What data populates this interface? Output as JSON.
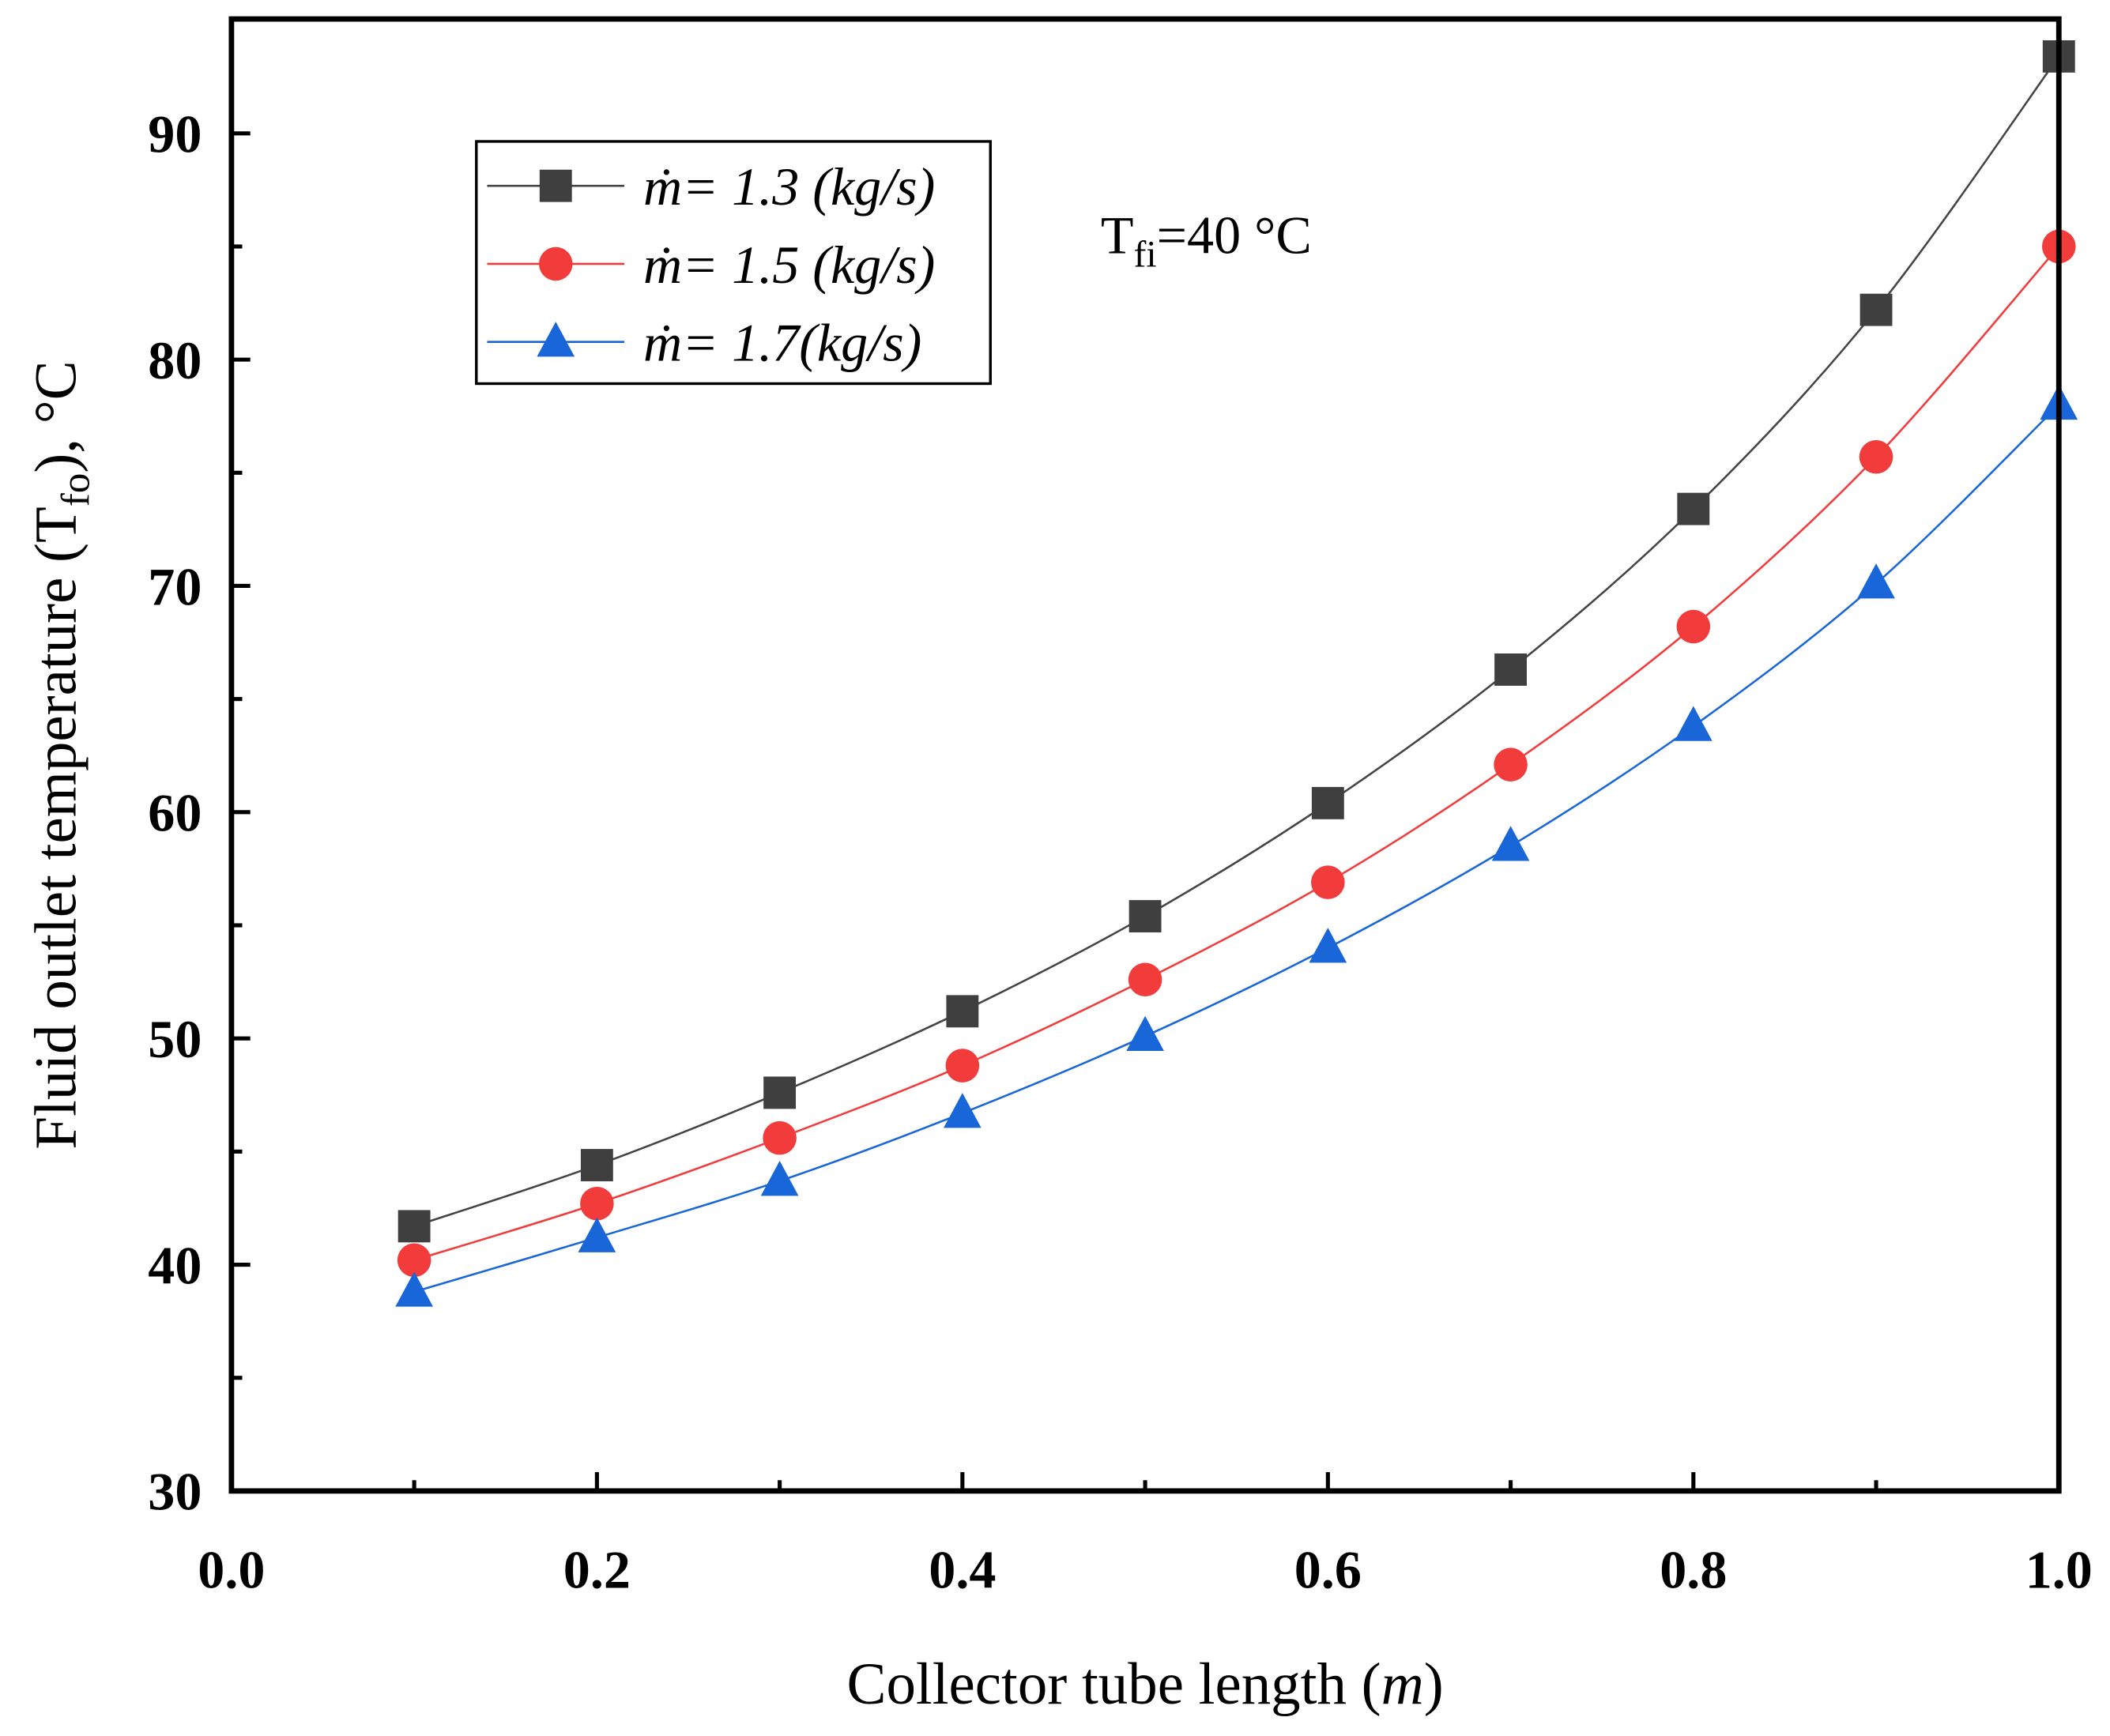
{
  "chart_data": {
    "type": "line",
    "title": "",
    "xlabel": {
      "main": "Collector tube length (",
      "italic": "m",
      "end": ")"
    },
    "ylabel": {
      "main": "Fluid outlet temperature (T",
      "sub": "fo",
      "end": "), °C"
    },
    "xlim": [
      0.0,
      1.0
    ],
    "ylim": [
      30,
      95
    ],
    "xticks": [
      "0.0",
      "0.2",
      "0.4",
      "0.6",
      "0.8",
      "1.0"
    ],
    "yticks": [
      "30",
      "40",
      "50",
      "60",
      "70",
      "80",
      "90"
    ],
    "grid": false,
    "legend_position": "top-left",
    "annotation": {
      "main": "T",
      "sub": "fi",
      "end": "=40 °C"
    },
    "x": [
      0.1,
      0.2,
      0.3,
      0.4,
      0.5,
      0.6,
      0.7,
      0.8,
      0.9,
      1.0
    ],
    "series": [
      {
        "name": "ṁ= 1.3 (kg/s)",
        "marker": "square",
        "color": "#3f3f3f",
        "line_color": "#444444",
        "values": [
          41.7,
          44.4,
          47.6,
          51.2,
          55.4,
          60.4,
          66.3,
          73.4,
          82.2,
          93.4
        ]
      },
      {
        "name": "ṁ= 1.5 (kg/s)",
        "marker": "circle",
        "color": "#f23c3c",
        "line_color": "#f23c3c",
        "values": [
          40.2,
          42.7,
          45.6,
          48.8,
          52.6,
          56.9,
          62.1,
          68.2,
          75.7,
          85.0
        ]
      },
      {
        "name": "ṁ= 1.7(kg/s)",
        "marker": "triangle",
        "color": "#1866d8",
        "line_color": "#1866d8",
        "values": [
          38.8,
          41.2,
          43.7,
          46.7,
          50.1,
          54.0,
          58.5,
          63.8,
          70.1,
          78.0
        ]
      }
    ]
  }
}
